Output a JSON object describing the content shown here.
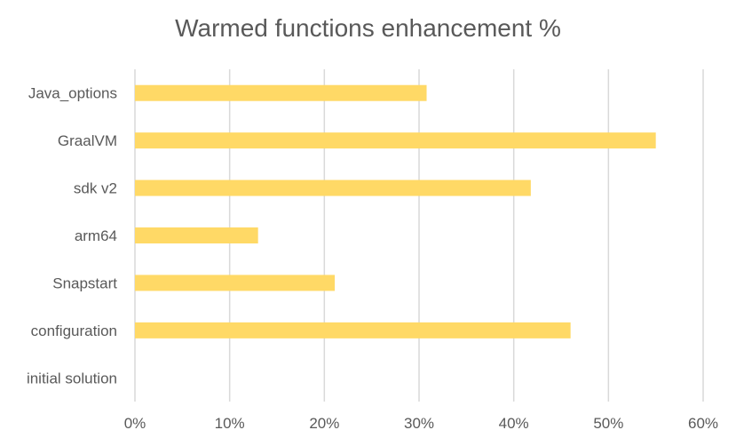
{
  "chart_data": {
    "type": "bar",
    "orientation": "horizontal",
    "title": "Warmed functions enhancement %",
    "categories": [
      "Java_options",
      "GraalVM",
      "sdk v2",
      "arm64",
      "Snapstart",
      "configuration",
      "initial solution"
    ],
    "values": [
      30.8,
      55.0,
      41.8,
      13.0,
      21.1,
      46.0,
      0
    ],
    "xlim": [
      0,
      60
    ],
    "x_ticks": [
      0,
      10,
      20,
      30,
      40,
      50,
      60
    ],
    "x_tick_labels": [
      "0%",
      "10%",
      "20%",
      "30%",
      "40%",
      "50%",
      "60%"
    ],
    "xlabel": "",
    "ylabel": "",
    "grid": "vertical",
    "legend": "none",
    "bar_color": "#FFD966",
    "grid_color": "#D9D9D9",
    "text_color": "#595959"
  }
}
